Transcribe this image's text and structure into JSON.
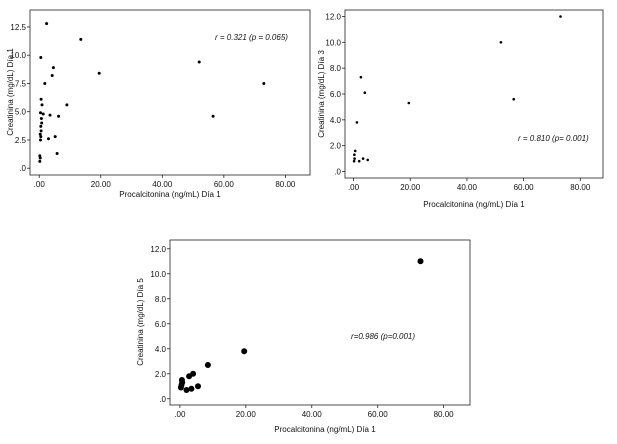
{
  "chart_data": [
    {
      "type": "scatter",
      "xlabel": "Procalcitonina (ng/mL) Día 1",
      "ylabel": "Creatinina (mg/dL) Día 1",
      "annotation": "r = 0.321  (p = 0.065)",
      "xlim": [
        -3,
        88
      ],
      "ylim": [
        -0.6,
        14
      ],
      "xticks": [
        ".00",
        "20.00",
        "40.00",
        "60.00",
        "80.00"
      ],
      "xtick_values": [
        0,
        20,
        40,
        60,
        80
      ],
      "yticks": [
        ".0",
        "2.5",
        "5.0",
        "7.5",
        "10.0",
        "12.5"
      ],
      "ytick_values": [
        0,
        2.5,
        5,
        7.5,
        10,
        12.5
      ],
      "points": [
        {
          "x": 0.2,
          "y": 0.6
        },
        {
          "x": 0.3,
          "y": 0.9
        },
        {
          "x": 0.2,
          "y": 1.1
        },
        {
          "x": 0.4,
          "y": 2.5
        },
        {
          "x": 0.5,
          "y": 2.8
        },
        {
          "x": 0.3,
          "y": 3.0
        },
        {
          "x": 0.6,
          "y": 3.3
        },
        {
          "x": 0.5,
          "y": 3.7
        },
        {
          "x": 0.8,
          "y": 4.0
        },
        {
          "x": 0.7,
          "y": 4.4
        },
        {
          "x": 0.4,
          "y": 4.9
        },
        {
          "x": 0.9,
          "y": 5.6
        },
        {
          "x": 0.6,
          "y": 6.1
        },
        {
          "x": 0.5,
          "y": 9.8
        },
        {
          "x": 1.3,
          "y": 4.8
        },
        {
          "x": 1.8,
          "y": 7.5
        },
        {
          "x": 2.4,
          "y": 12.8
        },
        {
          "x": 3.0,
          "y": 2.6
        },
        {
          "x": 3.5,
          "y": 4.7
        },
        {
          "x": 4.2,
          "y": 8.2
        },
        {
          "x": 4.6,
          "y": 8.9
        },
        {
          "x": 5.2,
          "y": 2.8
        },
        {
          "x": 5.8,
          "y": 1.3
        },
        {
          "x": 6.3,
          "y": 4.6
        },
        {
          "x": 9.0,
          "y": 5.6
        },
        {
          "x": 13.5,
          "y": 11.4
        },
        {
          "x": 19.5,
          "y": 8.4
        },
        {
          "x": 52.0,
          "y": 9.4
        },
        {
          "x": 56.5,
          "y": 4.6
        },
        {
          "x": 73.0,
          "y": 7.5
        }
      ]
    },
    {
      "type": "scatter",
      "xlabel": "Procalcitonina (ng/mL) Día 1",
      "ylabel": "Creatinina (mg/dL) Día 3",
      "annotation": "r = 0.810  (p= 0.001)",
      "xlim": [
        -3,
        88
      ],
      "ylim": [
        -0.5,
        12.5
      ],
      "xticks": [
        ".00",
        "20.00",
        "40.00",
        "60.00",
        "80.00"
      ],
      "xtick_values": [
        0,
        20,
        40,
        60,
        80
      ],
      "yticks": [
        ".0",
        "2.0",
        "4.0",
        "6.0",
        "8.0",
        "10.0",
        "12.0"
      ],
      "ytick_values": [
        0,
        2,
        4,
        6,
        8,
        10,
        12
      ],
      "points": [
        {
          "x": 0.2,
          "y": 0.8
        },
        {
          "x": 0.4,
          "y": 1.0
        },
        {
          "x": 0.3,
          "y": 1.3
        },
        {
          "x": 0.6,
          "y": 1.6
        },
        {
          "x": 1.2,
          "y": 3.8
        },
        {
          "x": 2.0,
          "y": 0.8
        },
        {
          "x": 2.6,
          "y": 7.3
        },
        {
          "x": 3.4,
          "y": 1.0
        },
        {
          "x": 4.0,
          "y": 6.1
        },
        {
          "x": 5.0,
          "y": 0.9
        },
        {
          "x": 19.5,
          "y": 5.3
        },
        {
          "x": 52.0,
          "y": 10.0
        },
        {
          "x": 56.5,
          "y": 5.6
        },
        {
          "x": 73.0,
          "y": 12.0
        }
      ]
    },
    {
      "type": "scatter",
      "xlabel": "Procalcitonina  (ng/mL)  Día 1",
      "ylabel": "Creatinina (mg/dL) Día 5",
      "annotation": "r=0.986  (p=0.001)",
      "xlim": [
        -3,
        88
      ],
      "ylim": [
        -0.5,
        12.7
      ],
      "xticks": [
        ".00",
        "20.00",
        "40.00",
        "60.00",
        "80.00"
      ],
      "xtick_values": [
        0,
        20,
        40,
        60,
        80
      ],
      "yticks": [
        ".0",
        "2.0",
        "4.0",
        "6.0",
        "8.0",
        "10.0",
        "12.0"
      ],
      "ytick_values": [
        0,
        2,
        4,
        6,
        8,
        10,
        12
      ],
      "points": [
        {
          "x": 0.3,
          "y": 0.9
        },
        {
          "x": 0.5,
          "y": 1.1
        },
        {
          "x": 0.7,
          "y": 1.3
        },
        {
          "x": 0.6,
          "y": 1.5
        },
        {
          "x": 2.0,
          "y": 0.7
        },
        {
          "x": 2.8,
          "y": 1.8
        },
        {
          "x": 3.5,
          "y": 0.8
        },
        {
          "x": 4.0,
          "y": 2.0
        },
        {
          "x": 5.5,
          "y": 1.0
        },
        {
          "x": 8.5,
          "y": 2.7
        },
        {
          "x": 19.5,
          "y": 3.8
        },
        {
          "x": 73.0,
          "y": 11.0
        }
      ]
    }
  ]
}
